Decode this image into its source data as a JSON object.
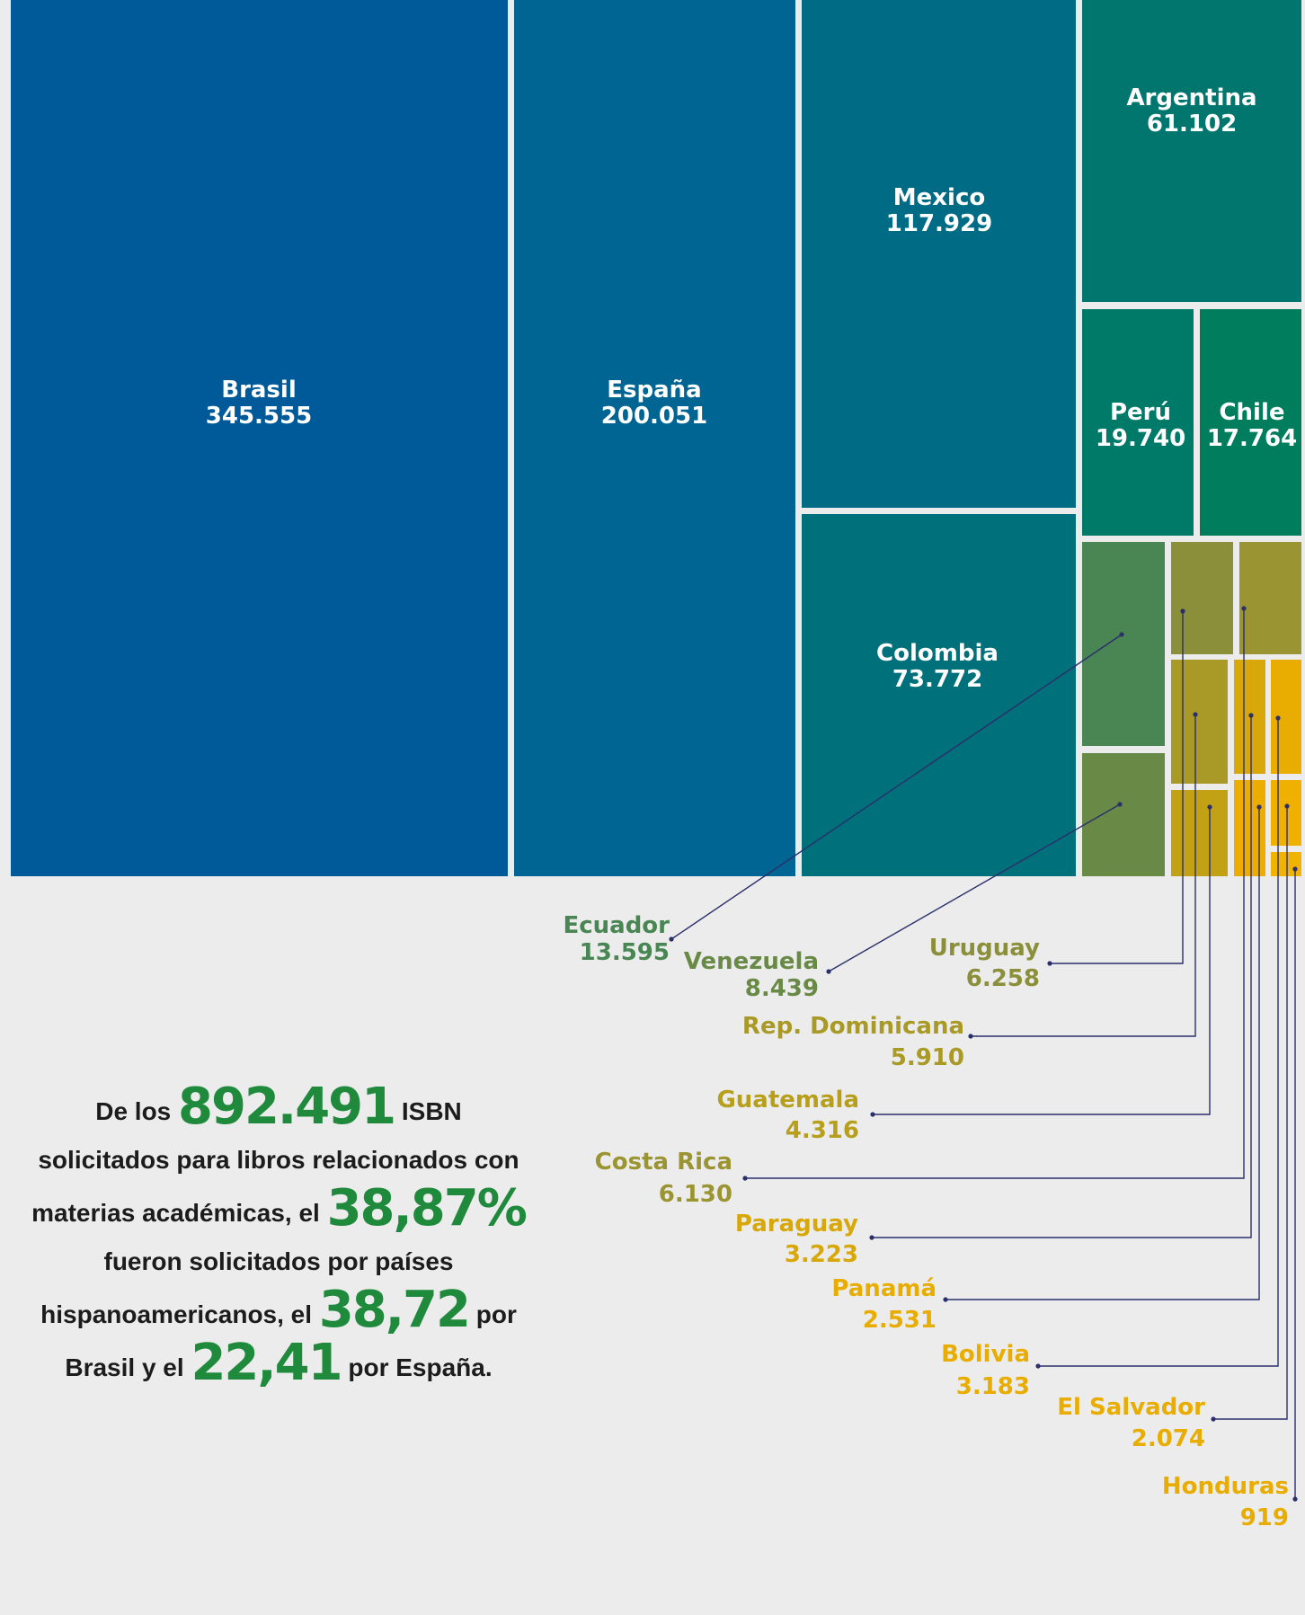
{
  "chart_data": {
    "type": "treemap",
    "items": [
      {
        "name": "Brasil",
        "value_label": "345.555",
        "value": 345555,
        "color": "#005a99"
      },
      {
        "name": "España",
        "value_label": "200.051",
        "value": 200051,
        "color": "#006593"
      },
      {
        "name": "Mexico",
        "value_label": "117.929",
        "value": 117929,
        "color": "#006b85"
      },
      {
        "name": "Colombia",
        "value_label": "73.772",
        "value": 73772,
        "color": "#00707a"
      },
      {
        "name": "Argentina",
        "value_label": "61.102",
        "value": 61102,
        "color": "#00766e"
      },
      {
        "name": "Perú",
        "value_label": "19.740",
        "value": 19740,
        "color": "#007a68"
      },
      {
        "name": "Chile",
        "value_label": "17.764",
        "value": 17764,
        "color": "#007d5c"
      },
      {
        "name": "Ecuador",
        "value_label": "13.595",
        "value": 13595,
        "color": "#4a8654"
      },
      {
        "name": "Venezuela",
        "value_label": "8.439",
        "value": 8439,
        "color": "#698a46"
      },
      {
        "name": "Uruguay",
        "value_label": "6.258",
        "value": 6258,
        "color": "#8c8f3a"
      },
      {
        "name": "Costa Rica",
        "value_label": "6.130",
        "value": 6130,
        "color": "#9b9432"
      },
      {
        "name": "Rep. Dominicana",
        "value_label": "5.910",
        "value": 5910,
        "color": "#a99a27"
      },
      {
        "name": "Guatemala",
        "value_label": "4.316",
        "value": 4316,
        "color": "#c3a114"
      },
      {
        "name": "Paraguay",
        "value_label": "3.223",
        "value": 3223,
        "color": "#d8a80a"
      },
      {
        "name": "Bolivia",
        "value_label": "3.183",
        "value": 3183,
        "color": "#e8ad00"
      },
      {
        "name": "Panamá",
        "value_label": "2.531",
        "value": 2531,
        "color": "#ecad00"
      },
      {
        "name": "El Salvador",
        "value_label": "2.074",
        "value": 2074,
        "color": "#efb000"
      },
      {
        "name": "Honduras",
        "value_label": "919",
        "value": 919,
        "color": "#f0b400"
      }
    ]
  },
  "summary": {
    "p1": "De los",
    "total": "892.491",
    "p2": "ISBN solicitados para libros relacionados con materias académicas, el",
    "pct_hisp": "38,87%",
    "p3": "fueron solicitados por países hispanoamericanos, el",
    "pct_brasil": "38,72",
    "p4": "por Brasil y el",
    "pct_espana": "22,41",
    "p5": "por España."
  },
  "colors": {
    "background": "#ececec",
    "accent_green": "#1f8a3c",
    "leader_line": "#2b2f6b",
    "callout_green": "#4a8654",
    "callout_olive": "#9b9432",
    "callout_yellow": "#e8ad00"
  }
}
